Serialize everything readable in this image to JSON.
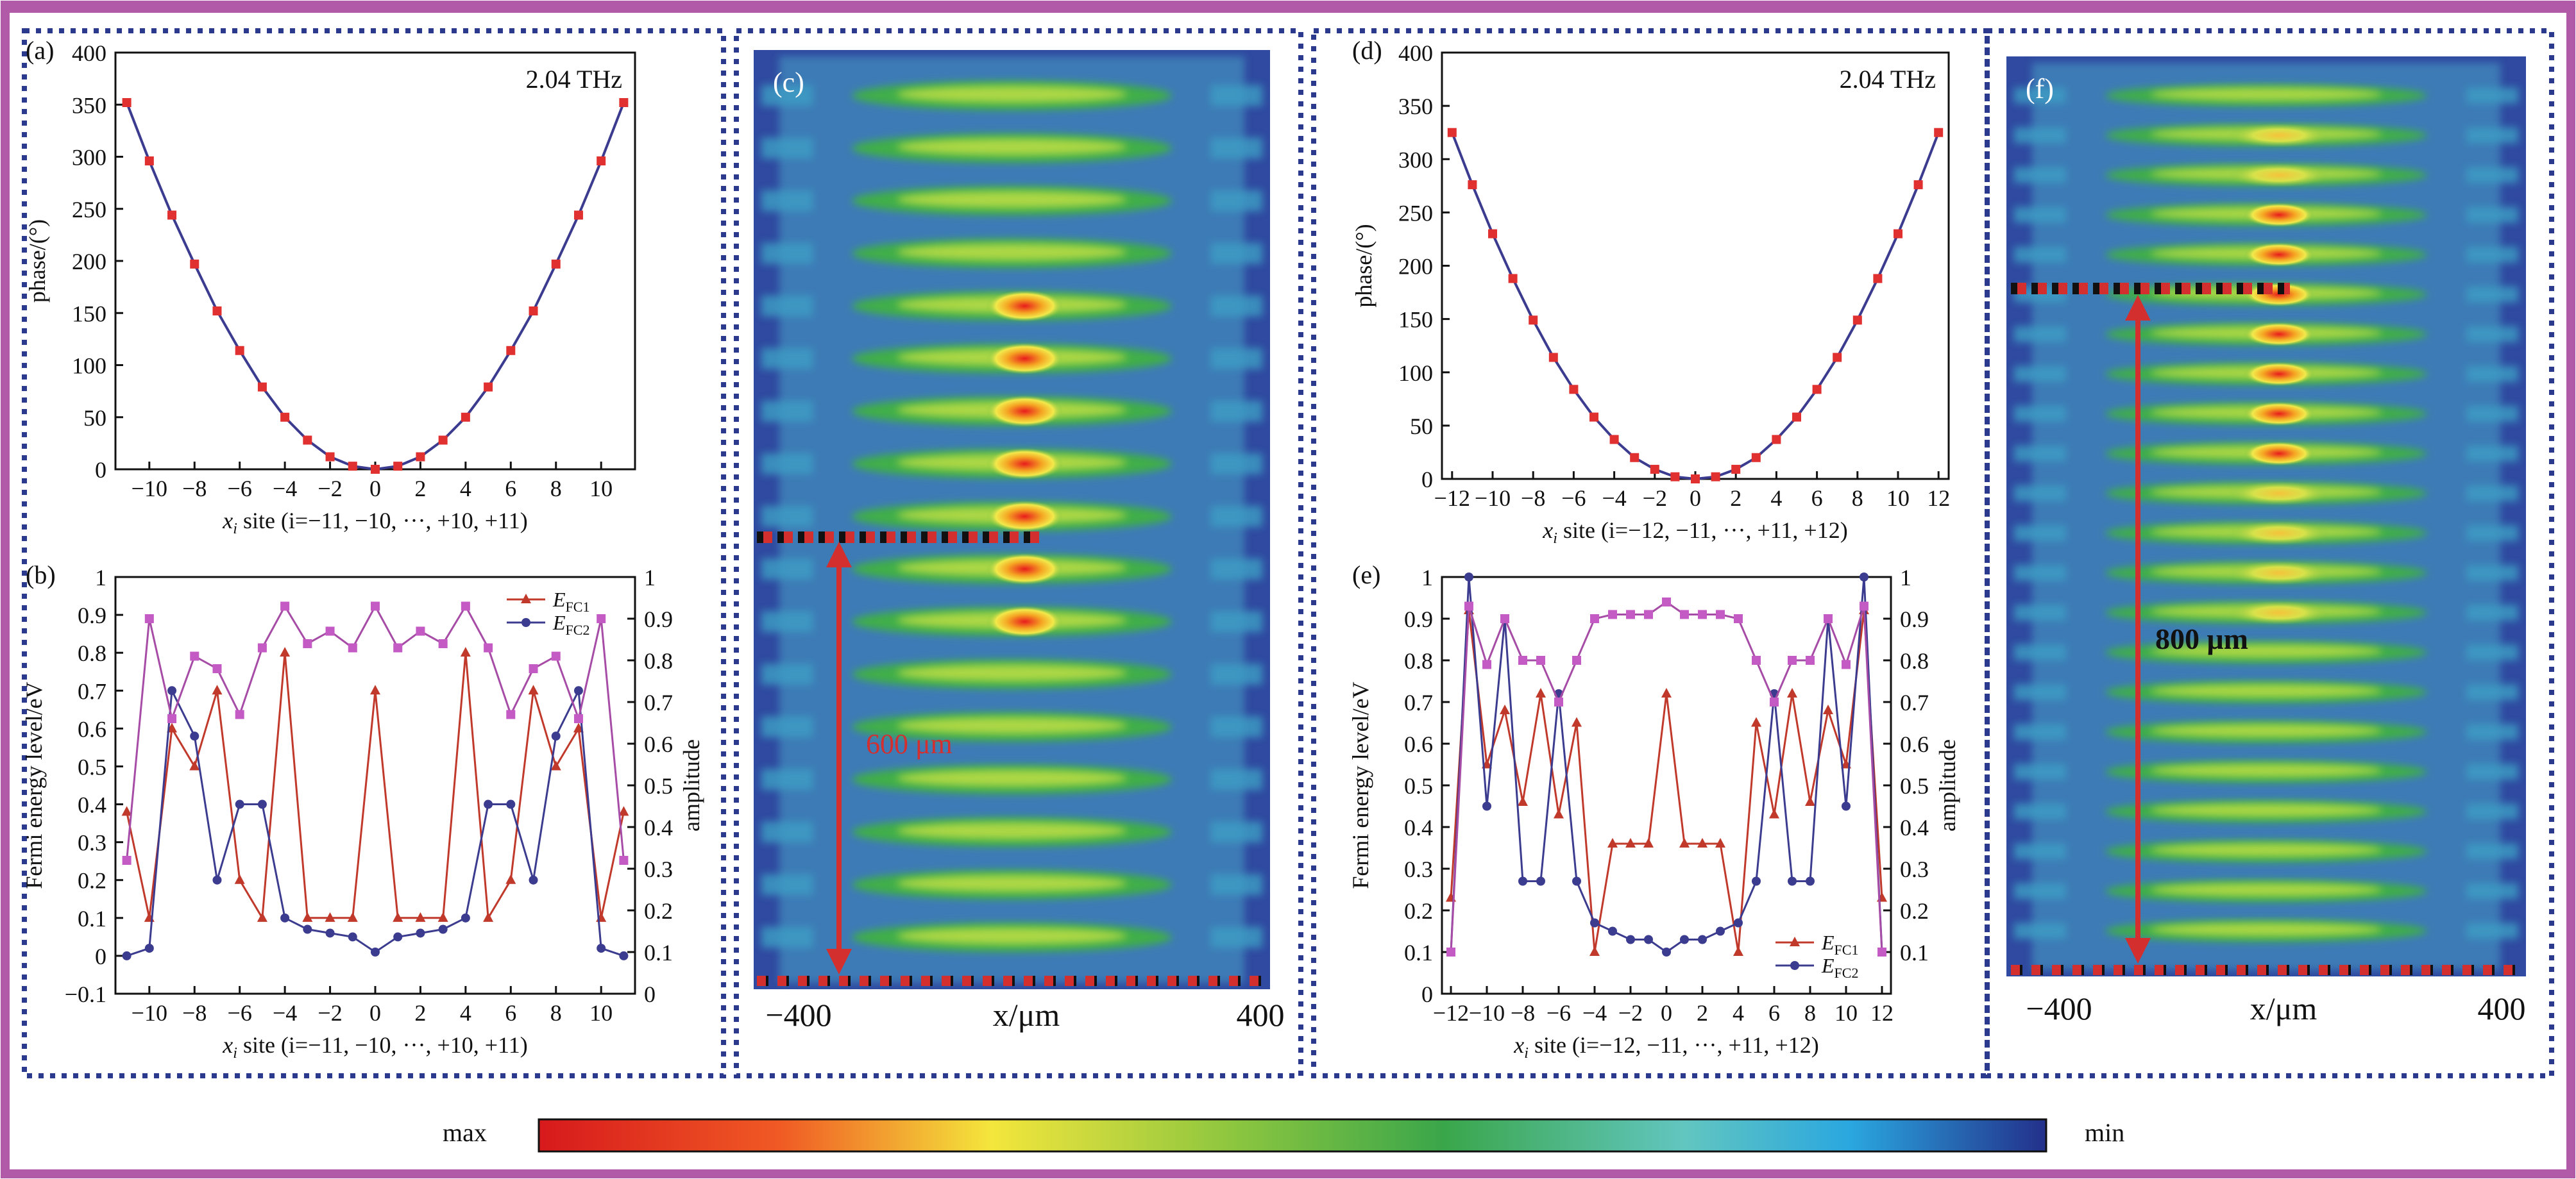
{
  "colors": {
    "border": "#b05aa8",
    "dotted": "#2b3a8c",
    "series_red": "#c0392b",
    "series_blue": "#3b3b8f",
    "series_purple": "#a64ca6",
    "marker_red": "#e03030",
    "curve": "#3b3b8f",
    "annot": "#d32f2f"
  },
  "colorbar": {
    "max_label": "max",
    "min_label": "min"
  },
  "chart_data": [
    {
      "id": "a",
      "type": "line",
      "panel_label": "(a)",
      "annotation": "2.04 THz",
      "xlabel_main": "x",
      "xlabel_sub": "i",
      "xlabel_rest": " site (i=−11, −10, ···, +10, +11)",
      "ylabel": "phase/(°)",
      "xlim": [
        -11.5,
        11.5
      ],
      "ylim": [
        0,
        400
      ],
      "xticks": [
        -10,
        -8,
        -6,
        -4,
        -2,
        0,
        2,
        4,
        6,
        8,
        10
      ],
      "yticks": [
        0,
        50,
        100,
        150,
        200,
        250,
        300,
        350,
        400
      ],
      "x": [
        -11,
        -10,
        -9,
        -8,
        -7,
        -6,
        -5,
        -4,
        -3,
        -2,
        -1,
        0,
        1,
        2,
        3,
        4,
        5,
        6,
        7,
        8,
        9,
        10,
        11
      ],
      "y": [
        352,
        296,
        244,
        197,
        152,
        114,
        79,
        50,
        28,
        12,
        3,
        0,
        3,
        12,
        28,
        50,
        79,
        114,
        152,
        197,
        244,
        296,
        352
      ]
    },
    {
      "id": "b",
      "type": "line",
      "panel_label": "(b)",
      "xlabel_main": "x",
      "xlabel_sub": "i",
      "xlabel_rest": " site (i=−11, −10, ···, +10, +11)",
      "ylabel": "Fermi energy level/eV",
      "ylabel_right": "amplitude",
      "xlim": [
        -11.5,
        11.5
      ],
      "ylim": [
        -0.1,
        1.0
      ],
      "ylim_right": [
        0,
        1.0
      ],
      "xticks": [
        -10,
        -8,
        -6,
        -4,
        -2,
        0,
        2,
        4,
        6,
        8,
        10
      ],
      "yticks": [
        -0.1,
        0,
        0.1,
        0.2,
        0.3,
        0.4,
        0.5,
        0.6,
        0.7,
        0.8,
        0.9,
        1.0
      ],
      "yticks_right": [
        0,
        0.1,
        0.2,
        0.3,
        0.4,
        0.5,
        0.6,
        0.7,
        0.8,
        0.9,
        1.0
      ],
      "x": [
        -11,
        -10,
        -9,
        -8,
        -7,
        -6,
        -5,
        -4,
        -3,
        -2,
        -1,
        0,
        1,
        2,
        3,
        4,
        5,
        6,
        7,
        8,
        9,
        10,
        11
      ],
      "series": [
        {
          "name": "E_FC1",
          "label_main": "E",
          "label_sub": "FC1",
          "axis": "left",
          "marker": "triangle",
          "values": [
            0.38,
            0.1,
            0.6,
            0.5,
            0.7,
            0.2,
            0.1,
            0.8,
            0.1,
            0.1,
            0.1,
            0.7,
            0.1,
            0.1,
            0.1,
            0.8,
            0.1,
            0.2,
            0.7,
            0.5,
            0.6,
            0.1,
            0.38
          ]
        },
        {
          "name": "E_FC2",
          "label_main": "E",
          "label_sub": "FC2",
          "axis": "left",
          "marker": "circle",
          "values": [
            0.0,
            0.02,
            0.7,
            0.58,
            0.2,
            0.4,
            0.4,
            0.1,
            0.07,
            0.06,
            0.05,
            0.01,
            0.05,
            0.06,
            0.07,
            0.1,
            0.4,
            0.4,
            0.2,
            0.58,
            0.7,
            0.02,
            0.0
          ]
        },
        {
          "name": "amplitude",
          "axis": "right",
          "marker": "square",
          "values": [
            0.32,
            0.9,
            0.66,
            0.81,
            0.78,
            0.67,
            0.83,
            0.93,
            0.84,
            0.87,
            0.83,
            0.93,
            0.83,
            0.87,
            0.84,
            0.93,
            0.83,
            0.67,
            0.78,
            0.81,
            0.66,
            0.9,
            0.32
          ]
        }
      ]
    },
    {
      "id": "c",
      "type": "heatmap",
      "panel_label": "(c)",
      "xlabel": "x/μm",
      "xtick_labels": [
        "−400",
        "400"
      ],
      "annotation": "600 μm",
      "bands": 17
    },
    {
      "id": "d",
      "type": "line",
      "panel_label": "(d)",
      "annotation": "2.04 THz",
      "xlabel_main": "x",
      "xlabel_sub": "i",
      "xlabel_rest": " site (i=−12, −11, ···, +11, +12)",
      "ylabel": "phase/(°)",
      "xlim": [
        -12.5,
        12.5
      ],
      "ylim": [
        0,
        400
      ],
      "xticks": [
        -12,
        -10,
        -8,
        -6,
        -4,
        -2,
        0,
        2,
        4,
        6,
        8,
        10,
        12
      ],
      "yticks": [
        0,
        50,
        100,
        150,
        200,
        250,
        300,
        350,
        400
      ],
      "x": [
        -12,
        -11,
        -10,
        -9,
        -8,
        -7,
        -6,
        -5,
        -4,
        -3,
        -2,
        -1,
        0,
        1,
        2,
        3,
        4,
        5,
        6,
        7,
        8,
        9,
        10,
        11,
        12
      ],
      "y": [
        325,
        276,
        230,
        188,
        149,
        114,
        84,
        58,
        37,
        20,
        9,
        2,
        0,
        2,
        9,
        20,
        37,
        58,
        84,
        114,
        149,
        188,
        230,
        276,
        325
      ]
    },
    {
      "id": "e",
      "type": "line",
      "panel_label": "(e)",
      "xlabel_main": "x",
      "xlabel_sub": "i",
      "xlabel_rest": " site (i=−12, −11, ···, +11, +12)",
      "ylabel": "Fermi energy level/eV",
      "ylabel_right": "amplitude",
      "xlim": [
        -12.5,
        12.5
      ],
      "ylim": [
        0,
        1.0
      ],
      "ylim_right": [
        0,
        1.0
      ],
      "xticks": [
        -12,
        -10,
        -8,
        -6,
        -4,
        -2,
        0,
        2,
        4,
        6,
        8,
        10,
        12
      ],
      "yticks": [
        0,
        0.1,
        0.2,
        0.3,
        0.4,
        0.5,
        0.6,
        0.7,
        0.8,
        0.9,
        1.0
      ],
      "yticks_right": [
        0.1,
        0.2,
        0.3,
        0.4,
        0.5,
        0.6,
        0.7,
        0.8,
        0.9,
        1.0
      ],
      "x": [
        -12,
        -11,
        -10,
        -9,
        -8,
        -7,
        -6,
        -5,
        -4,
        -3,
        -2,
        -1,
        0,
        1,
        2,
        3,
        4,
        5,
        6,
        7,
        8,
        9,
        10,
        11,
        12
      ],
      "series": [
        {
          "name": "E_FC1",
          "label_main": "E",
          "label_sub": "FC1",
          "axis": "left",
          "marker": "triangle",
          "values": [
            0.23,
            0.92,
            0.55,
            0.68,
            0.46,
            0.72,
            0.43,
            0.65,
            0.1,
            0.36,
            0.36,
            0.36,
            0.72,
            0.36,
            0.36,
            0.36,
            0.1,
            0.65,
            0.43,
            0.72,
            0.46,
            0.68,
            0.55,
            0.92,
            0.23
          ]
        },
        {
          "name": "E_FC2",
          "label_main": "E",
          "label_sub": "FC2",
          "axis": "left",
          "marker": "circle",
          "values": [
            0.1,
            1.0,
            0.45,
            0.9,
            0.27,
            0.27,
            0.72,
            0.27,
            0.17,
            0.15,
            0.13,
            0.13,
            0.1,
            0.13,
            0.13,
            0.15,
            0.17,
            0.27,
            0.72,
            0.27,
            0.27,
            0.9,
            0.45,
            1.0,
            0.1
          ]
        },
        {
          "name": "amplitude",
          "axis": "right",
          "marker": "square",
          "values": [
            0.1,
            0.93,
            0.79,
            0.9,
            0.8,
            0.8,
            0.7,
            0.8,
            0.9,
            0.91,
            0.91,
            0.91,
            0.94,
            0.91,
            0.91,
            0.91,
            0.9,
            0.8,
            0.7,
            0.8,
            0.8,
            0.9,
            0.79,
            0.93,
            0.1
          ]
        }
      ]
    },
    {
      "id": "f",
      "type": "heatmap",
      "panel_label": "(f)",
      "xlabel": "x/μm",
      "xtick_labels": [
        "−400",
        "400"
      ],
      "annotation": "800 μm",
      "bands": 22
    }
  ]
}
